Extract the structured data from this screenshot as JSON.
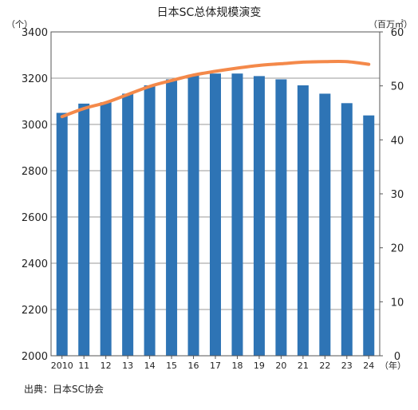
{
  "chart_data": {
    "type": "bar+line",
    "title": "日本SC总体规模演变",
    "source": "出典：日本SC协会",
    "y_left_unit": "（个）",
    "y_right_unit": "（百万㎡）",
    "x_unit": "（年）",
    "categories": [
      "2010",
      "11",
      "12",
      "13",
      "14",
      "15",
      "16",
      "17",
      "18",
      "19",
      "20",
      "21",
      "22",
      "23",
      "24"
    ],
    "ylim_left": [
      2000,
      3400
    ],
    "ylim_right": [
      0,
      60
    ],
    "yticks_left": [
      "2000",
      "2200",
      "2400",
      "2600",
      "2800",
      "3000",
      "3200",
      "3400"
    ],
    "yticks_right": [
      "0",
      "10",
      "20",
      "30",
      "40",
      "50",
      "60"
    ],
    "series": [
      {
        "kind": "bar",
        "axis": "left",
        "color": "#2e74b5",
        "values": [
          3050,
          3090,
          3096,
          3133,
          3169,
          3195,
          3211,
          3220,
          3220,
          3209,
          3195,
          3169,
          3133,
          3092,
          3039
        ]
      },
      {
        "kind": "line",
        "axis": "right",
        "color": "#f4894a",
        "values": [
          44.3,
          45.8,
          46.9,
          48.4,
          49.9,
          51.0,
          52.0,
          52.7,
          53.3,
          53.8,
          54.1,
          54.4,
          54.5,
          54.5,
          54.0
        ]
      }
    ],
    "grid": "horizontal",
    "legend": "none"
  }
}
